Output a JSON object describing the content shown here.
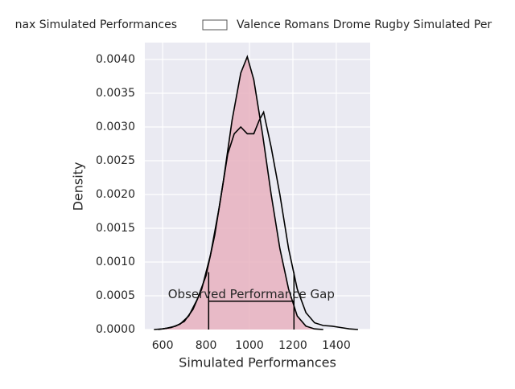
{
  "chart_data": {
    "type": "kde",
    "xlabel": "Simulated Performances",
    "ylabel": "Density",
    "xlim": [
      518,
      1556
    ],
    "ylim": [
      0,
      0.00425
    ],
    "xticks": [
      600,
      800,
      1000,
      1200,
      1400
    ],
    "yticks": [
      {
        "value": 0,
        "label": "0.0000"
      },
      {
        "value": 0.0005,
        "label": "0.0005"
      },
      {
        "value": 0.001,
        "label": "0.0010"
      },
      {
        "value": 0.0015,
        "label": "0.0015"
      },
      {
        "value": 0.002,
        "label": "0.0020"
      },
      {
        "value": 0.0025,
        "label": "0.0025"
      },
      {
        "value": 0.003,
        "label": "0.0030"
      },
      {
        "value": 0.0035,
        "label": "0.0035"
      },
      {
        "value": 0.004,
        "label": "0.0040"
      }
    ],
    "grid": true,
    "legend": "top",
    "series": [
      {
        "name": "nax Simulated Performances",
        "color": "#e8b2bf",
        "fill": true,
        "x": [
          560,
          600,
          640,
          680,
          720,
          760,
          800,
          840,
          880,
          920,
          960,
          990,
          1020,
          1060,
          1100,
          1140,
          1180,
          1220,
          1260,
          1300,
          1340
        ],
        "values": [
          0,
          1e-05,
          3e-05,
          8e-05,
          0.0002,
          0.00045,
          0.0008,
          0.0014,
          0.0022,
          0.0031,
          0.0038,
          0.00404,
          0.0037,
          0.0029,
          0.002,
          0.0012,
          0.0006,
          0.0002,
          5e-05,
          1e-05,
          0
        ]
      },
      {
        "name": "Valence Romans Drome Rugby Simulated Per",
        "color": "#ffffff",
        "fill": false,
        "x": [
          580,
          620,
          660,
          700,
          740,
          780,
          820,
          860,
          900,
          930,
          960,
          990,
          1020,
          1045,
          1065,
          1100,
          1140,
          1180,
          1220,
          1260,
          1300,
          1340,
          1380,
          1420,
          1460,
          1500
        ],
        "values": [
          0,
          2e-05,
          5e-05,
          0.00012,
          0.0003,
          0.0006,
          0.0011,
          0.0018,
          0.0026,
          0.0029,
          0.003,
          0.0029,
          0.0029,
          0.0031,
          0.00322,
          0.0027,
          0.002,
          0.0012,
          0.0006,
          0.00025,
          0.0001,
          6e-05,
          5e-05,
          3e-05,
          1e-05,
          0
        ]
      }
    ],
    "annotation": {
      "text": "Observed Performance Gap",
      "x0": 812,
      "x1": 1205,
      "y": 0.00042,
      "top": 0.00085
    }
  }
}
